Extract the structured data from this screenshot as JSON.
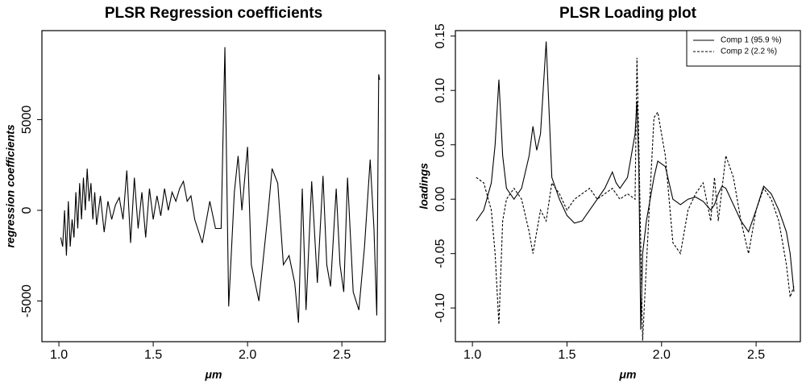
{
  "chart_data": [
    {
      "type": "line",
      "title": "PLSR Regression coefficients",
      "xlabel": "μm",
      "ylabel": "regression coefficients",
      "x": [
        1.01,
        1.02,
        1.03,
        1.04,
        1.05,
        1.06,
        1.07,
        1.08,
        1.09,
        1.1,
        1.11,
        1.12,
        1.13,
        1.14,
        1.15,
        1.16,
        1.17,
        1.18,
        1.19,
        1.2,
        1.22,
        1.24,
        1.26,
        1.28,
        1.3,
        1.32,
        1.34,
        1.36,
        1.38,
        1.4,
        1.42,
        1.44,
        1.46,
        1.48,
        1.5,
        1.52,
        1.54,
        1.56,
        1.58,
        1.6,
        1.62,
        1.64,
        1.66,
        1.68,
        1.7,
        1.72,
        1.76,
        1.8,
        1.83,
        1.86,
        1.88,
        1.9,
        1.93,
        1.95,
        1.97,
        2.0,
        2.02,
        2.04,
        2.06,
        2.09,
        2.11,
        2.13,
        2.16,
        2.19,
        2.22,
        2.25,
        2.27,
        2.29,
        2.31,
        2.34,
        2.37,
        2.4,
        2.42,
        2.44,
        2.47,
        2.49,
        2.51,
        2.53,
        2.56,
        2.59,
        2.62,
        2.65,
        2.67,
        2.685,
        2.695,
        2.7
      ],
      "series": [
        {
          "name": "regression coefficients",
          "color": "#000000",
          "linestyle": "solid",
          "values": [
            -1500,
            -2000,
            0,
            -2500,
            500,
            -2000,
            -500,
            -1500,
            1000,
            -1000,
            1500,
            -500,
            1800,
            0,
            2300,
            500,
            1500,
            -500,
            1000,
            -800,
            800,
            -1200,
            500,
            -500,
            300,
            700,
            -500,
            2200,
            -1800,
            1800,
            -1000,
            1000,
            -1500,
            1200,
            -500,
            800,
            -300,
            1200,
            0,
            1000,
            500,
            1200,
            1600,
            500,
            800,
            -500,
            -1800,
            500,
            -1000,
            -1000,
            9000,
            -5300,
            1000,
            3000,
            0,
            3500,
            -3000,
            -4000,
            -5000,
            -2000,
            0,
            2300,
            1500,
            -3000,
            -2500,
            -4000,
            -6200,
            1200,
            -5500,
            1600,
            -4000,
            1900,
            -3000,
            -4200,
            1200,
            -3000,
            -4500,
            1800,
            -4500,
            -5500,
            -2000,
            2800,
            -1000,
            -5800,
            7500,
            7200
          ]
        }
      ],
      "xlim": [
        0.91,
        2.73
      ],
      "xticks": [
        {
          "value": 1,
          "label": "1.0"
        },
        {
          "value": 1.5,
          "label": "1.5"
        },
        {
          "value": 2,
          "label": "2.0"
        },
        {
          "value": 2.5,
          "label": "2.5"
        }
      ],
      "ylim": [
        -7244,
        9911
      ],
      "yticks": [
        -5000,
        0,
        5000
      ],
      "grid": false
    },
    {
      "type": "line",
      "title": "PLSR Loading plot",
      "xlabel": "μm",
      "ylabel": "loadings",
      "legend": "topright",
      "x": [
        1.02,
        1.06,
        1.1,
        1.12,
        1.14,
        1.16,
        1.18,
        1.22,
        1.26,
        1.3,
        1.32,
        1.34,
        1.36,
        1.39,
        1.42,
        1.46,
        1.5,
        1.54,
        1.58,
        1.62,
        1.66,
        1.7,
        1.74,
        1.76,
        1.78,
        1.82,
        1.86,
        1.87,
        1.88,
        1.89,
        1.9,
        1.92,
        1.96,
        1.98,
        2.02,
        2.06,
        2.1,
        2.14,
        2.18,
        2.22,
        2.26,
        2.28,
        2.3,
        2.32,
        2.34,
        2.38,
        2.42,
        2.46,
        2.5,
        2.54,
        2.58,
        2.62,
        2.66,
        2.68,
        2.7
      ],
      "series": [
        {
          "name": "Comp 1 (95.9 %)",
          "color": "#000000",
          "linestyle": "solid",
          "values": [
            -0.02,
            -0.01,
            0.015,
            0.05,
            0.11,
            0.04,
            0.01,
            0.0,
            0.01,
            0.04,
            0.067,
            0.045,
            0.06,
            0.145,
            0.02,
            0.0,
            -0.015,
            -0.022,
            -0.02,
            -0.01,
            0.0,
            0.01,
            0.025,
            0.015,
            0.01,
            0.02,
            0.06,
            0.09,
            0.03,
            -0.12,
            -0.05,
            -0.02,
            0.02,
            0.035,
            0.03,
            0.0,
            -0.005,
            0.0,
            0.002,
            -0.002,
            -0.01,
            -0.005,
            0.005,
            0.012,
            0.01,
            -0.005,
            -0.02,
            -0.03,
            -0.01,
            0.012,
            0.005,
            -0.01,
            -0.03,
            -0.05,
            -0.085
          ]
        },
        {
          "name": "Comp 2 (2.2 %)",
          "color": "#000000",
          "linestyle": "dashed",
          "values": [
            0.02,
            0.015,
            -0.01,
            -0.05,
            -0.115,
            -0.02,
            0.0,
            0.01,
            0.0,
            -0.03,
            -0.05,
            -0.03,
            -0.01,
            -0.02,
            0.015,
            0.005,
            -0.01,
            0.0,
            0.005,
            0.01,
            0.0,
            0.005,
            0.01,
            0.005,
            0.0,
            0.005,
            0.0,
            0.13,
            0.05,
            -0.04,
            -0.13,
            -0.06,
            0.075,
            0.08,
            0.04,
            -0.04,
            -0.05,
            -0.01,
            0.005,
            0.015,
            -0.02,
            0.02,
            -0.02,
            0.01,
            0.04,
            0.02,
            -0.02,
            -0.05,
            -0.01,
            0.01,
            0.0,
            -0.02,
            -0.06,
            -0.09,
            -0.08
          ]
        }
      ],
      "xlim": [
        0.91,
        2.734
      ],
      "xticks": [
        {
          "value": 1,
          "label": "1.0"
        },
        {
          "value": 1.5,
          "label": "1.5"
        },
        {
          "value": 2,
          "label": "2.0"
        },
        {
          "value": 2.5,
          "label": "2.5"
        }
      ],
      "ylim": [
        -0.131,
        0.155
      ],
      "yticks": [
        0.15,
        {
          "value": 0.1,
          "label": "0.10"
        },
        0.05,
        {
          "value": 0,
          "label": "0.00"
        },
        -0.05,
        {
          "value": -0.1,
          "label": "-0.10"
        }
      ],
      "grid": false
    }
  ]
}
